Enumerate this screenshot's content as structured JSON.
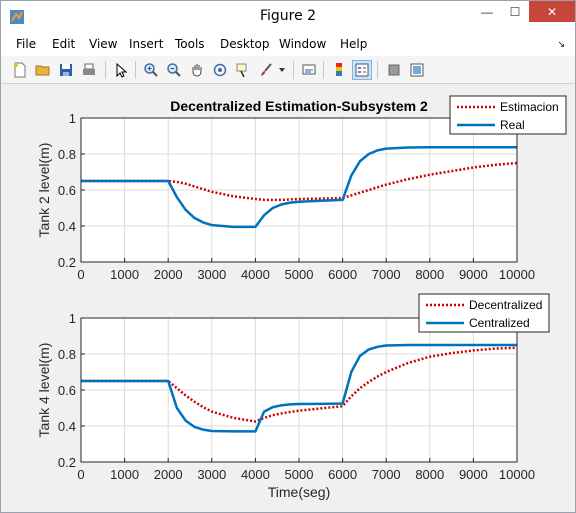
{
  "window": {
    "title": "Figure 2",
    "minimize_symbol": "—",
    "maximize_symbol": "☐",
    "close_symbol": "✕"
  },
  "menu": {
    "items": [
      "File",
      "Edit",
      "View",
      "Insert",
      "Tools",
      "Desktop",
      "Window",
      "Help"
    ],
    "dock_arrow": "↘"
  },
  "toolbar": {
    "icons": [
      "new-figure-icon",
      "open-file-icon",
      "save-icon",
      "print-icon",
      "edit-plot-arrow-icon",
      "zoom-in-icon",
      "zoom-out-icon",
      "pan-hand-icon",
      "rotate-3d-icon",
      "data-cursor-icon",
      "brush-icon",
      "brush-dropdown-icon",
      "link-plot-icon",
      "insert-colorbar-icon",
      "insert-legend-icon",
      "hide-plot-tools-icon",
      "show-plot-tools-icon"
    ],
    "active": "insert-legend-icon"
  },
  "colors": {
    "estimation_dotted": "#cc0000",
    "real_line": "#0072bd",
    "axes_bg": "#ffffff",
    "grid": "#dcdcdc"
  },
  "chart_data": [
    {
      "type": "line",
      "title": "Decentralized Estimation-Subsystem 2",
      "xlabel": "",
      "ylabel": "Tank 2 level(m)",
      "xlim": [
        0,
        10000
      ],
      "ylim": [
        0.2,
        1
      ],
      "xticks": [
        "0",
        "1000",
        "2000",
        "3000",
        "4000",
        "5000",
        "6000",
        "7000",
        "8000",
        "9000",
        "10000"
      ],
      "yticks": [
        "0.2",
        "0.4",
        "0.6",
        "0.8",
        "1"
      ],
      "grid": true,
      "legend_position": "top-right",
      "x": [
        0,
        1000,
        2000,
        2200,
        2400,
        2600,
        2800,
        3000,
        3500,
        4000,
        4200,
        4400,
        4600,
        4800,
        5000,
        5500,
        6000,
        6200,
        6400,
        6600,
        6800,
        7000,
        7500,
        8000,
        8500,
        9000,
        9500,
        10000
      ],
      "series": [
        {
          "name": "Estimacion",
          "style": "dotted",
          "values": [
            0.65,
            0.65,
            0.65,
            0.645,
            0.635,
            0.62,
            0.605,
            0.59,
            0.565,
            0.55,
            0.545,
            0.545,
            0.545,
            0.548,
            0.55,
            0.552,
            0.555,
            0.57,
            0.585,
            0.6,
            0.615,
            0.63,
            0.66,
            0.685,
            0.705,
            0.725,
            0.74,
            0.75
          ]
        },
        {
          "name": "Real",
          "style": "solid",
          "values": [
            0.65,
            0.65,
            0.65,
            0.56,
            0.49,
            0.445,
            0.42,
            0.405,
            0.395,
            0.395,
            0.46,
            0.5,
            0.52,
            0.53,
            0.535,
            0.54,
            0.545,
            0.68,
            0.76,
            0.8,
            0.82,
            0.83,
            0.836,
            0.838,
            0.838,
            0.838,
            0.838,
            0.838
          ]
        }
      ]
    },
    {
      "type": "line",
      "title": "",
      "xlabel": "Time(seg)",
      "ylabel": "Tank 4 level(m)",
      "xlim": [
        0,
        10000
      ],
      "ylim": [
        0.2,
        1
      ],
      "xticks": [
        "0",
        "1000",
        "2000",
        "3000",
        "4000",
        "5000",
        "6000",
        "7000",
        "8000",
        "9000",
        "10000"
      ],
      "yticks": [
        "0.2",
        "0.4",
        "0.6",
        "0.8",
        "1"
      ],
      "grid": true,
      "legend_position": "top-right",
      "x": [
        0,
        1000,
        2000,
        2200,
        2400,
        2600,
        2800,
        3000,
        3500,
        4000,
        4200,
        4400,
        4600,
        4800,
        5000,
        5500,
        6000,
        6200,
        6400,
        6600,
        6800,
        7000,
        7500,
        8000,
        8500,
        9000,
        9500,
        10000
      ],
      "series": [
        {
          "name": "Decentralized",
          "style": "dotted",
          "values": [
            0.65,
            0.65,
            0.65,
            0.61,
            0.57,
            0.535,
            0.505,
            0.48,
            0.445,
            0.425,
            0.445,
            0.46,
            0.47,
            0.478,
            0.485,
            0.498,
            0.51,
            0.565,
            0.61,
            0.645,
            0.675,
            0.7,
            0.75,
            0.785,
            0.805,
            0.82,
            0.83,
            0.835
          ]
        },
        {
          "name": "Centralized",
          "style": "solid",
          "values": [
            0.65,
            0.65,
            0.65,
            0.5,
            0.43,
            0.395,
            0.38,
            0.372,
            0.37,
            0.37,
            0.48,
            0.505,
            0.515,
            0.52,
            0.522,
            0.523,
            0.525,
            0.7,
            0.79,
            0.825,
            0.84,
            0.847,
            0.85,
            0.85,
            0.85,
            0.85,
            0.85,
            0.85
          ]
        }
      ]
    }
  ]
}
